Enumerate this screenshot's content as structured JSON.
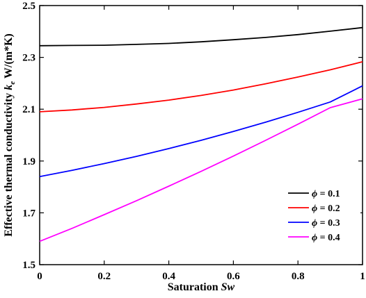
{
  "chart_data": {
    "type": "line",
    "xlabel": "Saturation Sw",
    "xlabel_parts": {
      "text": "Saturation ",
      "symbol": "Sw"
    },
    "ylabel": "Effective thermal conductivity k_e W/(m*K)",
    "ylabel_parts": {
      "text": "Effective thermal conductivity ",
      "symbol": "k",
      "sub": "e",
      "unit": " W/(m*K)"
    },
    "xlim": [
      0,
      1
    ],
    "ylim": [
      1.5,
      2.5
    ],
    "x_ticks": [
      0,
      0.2,
      0.4,
      0.6,
      0.8,
      1
    ],
    "x_tick_labels": [
      "0",
      "0.2",
      "0.4",
      "0.6",
      "0.8",
      "1"
    ],
    "y_ticks": [
      1.5,
      1.7,
      1.9,
      2.1,
      2.3,
      2.5
    ],
    "y_tick_labels": [
      "1.5",
      "1.7",
      "1.9",
      "2.1",
      "2.3",
      "2.5"
    ],
    "grid": false,
    "legend_position": "bottom-right",
    "x": [
      0,
      0.1,
      0.2,
      0.3,
      0.4,
      0.5,
      0.6,
      0.7,
      0.8,
      0.9,
      1.0
    ],
    "series": [
      {
        "name": "ϕ = 0.1",
        "symbol": "ϕ",
        "label_value": " = 0.1",
        "color": "#000000",
        "values": [
          2.345,
          2.346,
          2.347,
          2.35,
          2.354,
          2.36,
          2.368,
          2.377,
          2.388,
          2.401,
          2.415
        ]
      },
      {
        "name": "ϕ = 0.2",
        "symbol": "ϕ",
        "label_value": " = 0.2",
        "color": "#ff0000",
        "values": [
          2.09,
          2.097,
          2.107,
          2.12,
          2.135,
          2.153,
          2.174,
          2.198,
          2.224,
          2.252,
          2.283
        ]
      },
      {
        "name": "ϕ = 0.3",
        "symbol": "ϕ",
        "label_value": " = 0.3",
        "color": "#0000ff",
        "values": [
          1.84,
          1.864,
          1.89,
          1.918,
          1.948,
          1.98,
          2.014,
          2.05,
          2.088,
          2.128,
          2.19
        ]
      },
      {
        "name": "ϕ = 0.4",
        "symbol": "ϕ",
        "label_value": " = 0.4",
        "color": "#ff00ff",
        "values": [
          1.59,
          1.64,
          1.693,
          1.747,
          1.803,
          1.86,
          1.919,
          1.98,
          2.042,
          2.106,
          2.14
        ]
      }
    ]
  }
}
